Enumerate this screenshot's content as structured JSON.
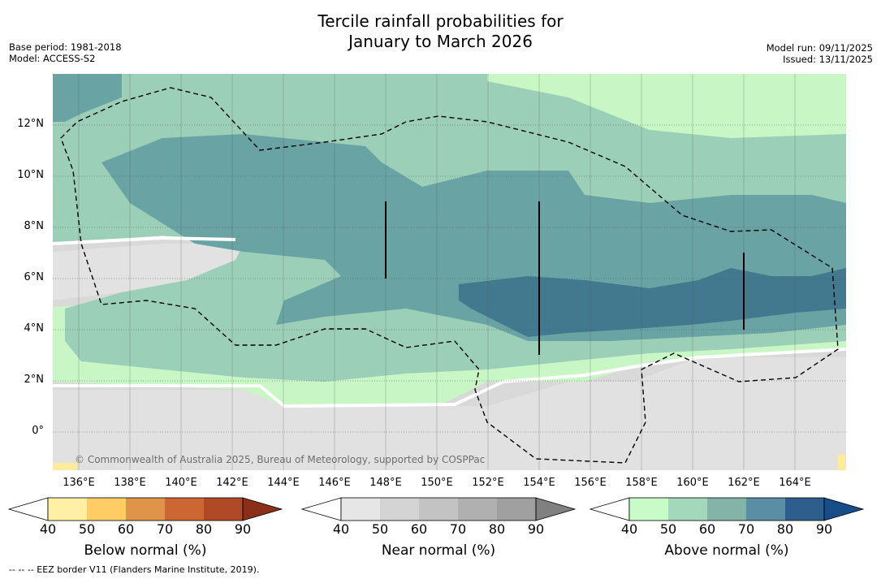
{
  "title": {
    "line1": "Tercile rainfall probabilities for",
    "line2": "January to March 2026"
  },
  "meta": {
    "base_period": "Base period: 1981-2018",
    "model": "Model: ACCESS-S2",
    "model_run": "Model run: 09/11/2025",
    "issued": "Issued: 13/11/2025"
  },
  "map": {
    "lat_labels": [
      "12°N",
      "10°N",
      "8°N",
      "6°N",
      "4°N",
      "2°N",
      "0°"
    ],
    "lon_labels": [
      "136°E",
      "138°E",
      "140°E",
      "142°E",
      "144°E",
      "146°E",
      "148°E",
      "150°E",
      "152°E",
      "154°E",
      "156°E",
      "158°E",
      "160°E",
      "162°E",
      "164°E"
    ],
    "copyright": "© Commonwealth of Australia 2025, Bureau of Meteorology, supported by COSPPac",
    "colors": {
      "ocean_near_low": "#d4d4d4",
      "near_normal_40": "#e4e4e4",
      "above_40": "#c8f7c5",
      "above_50": "#9ccfb8",
      "above_60": "#6aa3a4",
      "above_70": "#42798f",
      "below_40": "#ffeb9c"
    }
  },
  "colorbars": [
    {
      "title": "Below normal (%)",
      "ticks": [
        "40",
        "50",
        "60",
        "70",
        "80",
        "90"
      ],
      "colors": [
        "#fff0a6",
        "#ffcc66",
        "#e09448",
        "#cc6633",
        "#b04a26",
        "#8c2f1a"
      ]
    },
    {
      "title": "Near normal (%)",
      "ticks": [
        "40",
        "50",
        "60",
        "70",
        "80",
        "90"
      ],
      "colors": [
        "#e6e6e6",
        "#d4d4d4",
        "#c3c3c3",
        "#b0b0b0",
        "#a0a0a0",
        "#808080"
      ]
    },
    {
      "title": "Above normal (%)",
      "ticks": [
        "40",
        "50",
        "60",
        "70",
        "80",
        "90"
      ],
      "colors": [
        "#c8fbc8",
        "#a4d8bc",
        "#84b4a8",
        "#5a8ea4",
        "#2e5f8c",
        "#174e8a"
      ]
    }
  ],
  "footnote": "--  --  -- EEZ border V11 (Flanders Marine Institute, 2019)."
}
